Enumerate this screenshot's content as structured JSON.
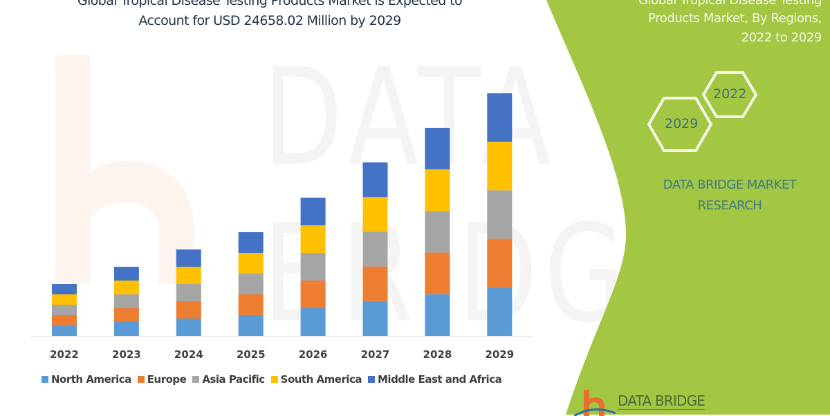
{
  "header": {
    "title_line1": "Global Tropical Disease Testing Products Market is Expected to",
    "title_line2": "Account for USD 24658.02 Million by 2029"
  },
  "side_panel": {
    "title_line1": "Global Tropical Disease Testing",
    "title_line2": "Products Market, By Regions,",
    "title_line3": "2022 to 2029",
    "hex_years": [
      "2022",
      "2029"
    ],
    "brand_line1": "DATA BRIDGE MARKET",
    "brand_line2": "RESEARCH",
    "logo_text": "DATA BRIDGE",
    "watermark_text": "DATA BRIDGE",
    "color": "#a3c743"
  },
  "chart_data": {
    "type": "bar",
    "stacked": true,
    "title": "Global Tropical Disease Testing Products Market is Expected to Account for USD 24658.02 Million by 2029",
    "categories": [
      "2022",
      "2023",
      "2024",
      "2025",
      "2026",
      "2027",
      "2028",
      "2029"
    ],
    "series": [
      {
        "name": "North America",
        "color": "#5b9bd5",
        "values": [
          1054,
          1405,
          1756,
          2108,
          2810,
          3526,
          4230,
          4932
        ]
      },
      {
        "name": "Europe",
        "color": "#ed7d31",
        "values": [
          1054,
          1405,
          1756,
          2108,
          2810,
          3526,
          4230,
          4932
        ]
      },
      {
        "name": "Asia Pacific",
        "color": "#a5a5a5",
        "values": [
          1054,
          1405,
          1756,
          2108,
          2810,
          3526,
          4230,
          4932
        ]
      },
      {
        "name": "South America",
        "color": "#ffc000",
        "values": [
          1054,
          1405,
          1756,
          2108,
          2810,
          3526,
          4230,
          4932
        ]
      },
      {
        "name": "Middle East and Africa",
        "color": "#4472c4",
        "values": [
          1054,
          1405,
          1756,
          2108,
          2810,
          3526,
          4230,
          4932
        ]
      }
    ],
    "ylim": [
      0,
      24658.02
    ],
    "y_axis_shown": false,
    "grid": false,
    "legend_position": "bottom"
  }
}
